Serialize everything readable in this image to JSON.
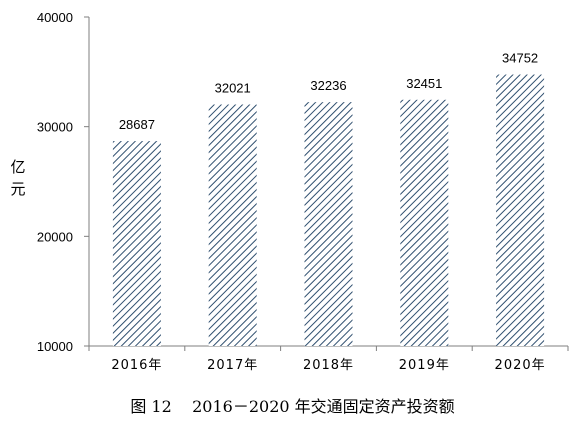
{
  "chart_data": {
    "type": "bar",
    "categories": [
      "2016年",
      "2017年",
      "2018年",
      "2019年",
      "2020年"
    ],
    "values": [
      28687,
      32021,
      32236,
      32451,
      34752
    ],
    "ylabel": "亿元",
    "ylim": [
      10000,
      40000
    ],
    "yticks": [
      10000,
      20000,
      30000,
      40000
    ],
    "grid": false,
    "legend": "none",
    "bar_style": "diagonal-hatch",
    "colors": {
      "bar_hatch": "#2f4f6f",
      "axis": "#7f7f7f",
      "text": "#000000"
    }
  },
  "caption": {
    "figure_label": "图 12",
    "title": "2016－2020 年交通固定资产投资额"
  }
}
